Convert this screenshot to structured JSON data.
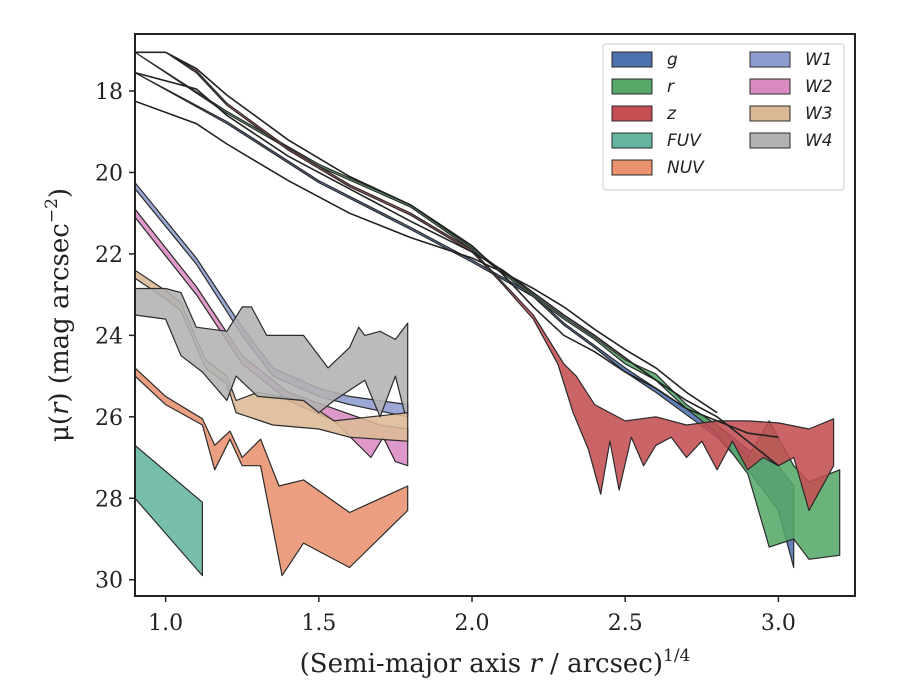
{
  "chart_data": {
    "type": "area",
    "xlabel_main": "(Semi-major axis ",
    "xlabel_var": "r",
    "xlabel_unit": " / arcsec)",
    "xlabel_exp": "1/4",
    "ylabel_main": "μ(",
    "ylabel_var": "r",
    "ylabel_unit": ") (mag arcsec",
    "ylabel_exp": "−2",
    "ylabel_close": ")",
    "xlim": [
      0.9,
      3.25
    ],
    "ylim": [
      30.4,
      16.6
    ],
    "y_inverted": true,
    "xticks": [
      1.0,
      1.5,
      2.0,
      2.5,
      3.0
    ],
    "xtick_labels": [
      "1.0",
      "1.5",
      "2.0",
      "2.5",
      "3.0"
    ],
    "yticks": [
      18,
      20,
      22,
      24,
      26,
      28,
      30
    ],
    "ytick_labels": [
      "18",
      "20",
      "22",
      "24",
      "26",
      "28",
      "30"
    ],
    "grid": false,
    "legend_position": "top-right",
    "legend_columns": 2,
    "series": [
      {
        "name": "g",
        "color": "#4c72b0",
        "upper": [
          [
            0.9,
            17.55
          ],
          [
            1.2,
            18.75
          ],
          [
            1.5,
            20.2
          ],
          [
            1.8,
            21.35
          ],
          [
            2.0,
            22.15
          ],
          [
            2.2,
            23.0
          ],
          [
            2.3,
            23.7
          ],
          [
            2.4,
            24.25
          ],
          [
            2.5,
            24.8
          ],
          [
            2.6,
            25.3
          ],
          [
            2.7,
            25.8
          ],
          [
            2.8,
            26.2
          ],
          [
            2.9,
            26.8
          ],
          [
            3.0,
            27.2
          ],
          [
            3.05,
            27.7
          ]
        ],
        "lower": [
          [
            0.9,
            17.55
          ],
          [
            1.2,
            18.8
          ],
          [
            1.5,
            20.25
          ],
          [
            1.8,
            21.4
          ],
          [
            2.0,
            22.2
          ],
          [
            2.2,
            23.05
          ],
          [
            2.3,
            23.75
          ],
          [
            2.4,
            24.3
          ],
          [
            2.5,
            24.9
          ],
          [
            2.6,
            25.4
          ],
          [
            2.7,
            25.95
          ],
          [
            2.8,
            26.5
          ],
          [
            2.9,
            27.3
          ],
          [
            3.0,
            28.3
          ],
          [
            3.05,
            29.7
          ]
        ]
      },
      {
        "name": "r",
        "color": "#55a868",
        "upper": [
          [
            0.9,
            17.05
          ],
          [
            1.2,
            18.5
          ],
          [
            1.5,
            19.8
          ],
          [
            1.8,
            20.8
          ],
          [
            2.0,
            21.85
          ],
          [
            2.2,
            23.0
          ],
          [
            2.3,
            23.55
          ],
          [
            2.4,
            24.05
          ],
          [
            2.5,
            24.6
          ],
          [
            2.6,
            24.95
          ],
          [
            2.7,
            25.7
          ],
          [
            2.8,
            26.2
          ],
          [
            2.9,
            27.0
          ],
          [
            2.97,
            26.1
          ],
          [
            3.05,
            27.2
          ],
          [
            3.1,
            27.6
          ],
          [
            3.2,
            27.3
          ]
        ],
        "lower": [
          [
            0.9,
            17.05
          ],
          [
            1.2,
            18.55
          ],
          [
            1.5,
            19.85
          ],
          [
            1.8,
            20.85
          ],
          [
            2.0,
            21.9
          ],
          [
            2.2,
            23.05
          ],
          [
            2.3,
            23.6
          ],
          [
            2.4,
            24.1
          ],
          [
            2.5,
            24.7
          ],
          [
            2.6,
            25.1
          ],
          [
            2.7,
            25.8
          ],
          [
            2.8,
            26.4
          ],
          [
            2.9,
            27.4
          ],
          [
            2.97,
            29.2
          ],
          [
            3.05,
            29.0
          ],
          [
            3.1,
            29.5
          ],
          [
            3.2,
            29.4
          ]
        ]
      },
      {
        "name": "z",
        "color": "#c44e52",
        "upper": [
          [
            0.9,
            17.05
          ],
          [
            1.0,
            17.05
          ],
          [
            1.1,
            17.5
          ],
          [
            1.2,
            18.3
          ],
          [
            1.4,
            19.4
          ],
          [
            1.6,
            20.3
          ],
          [
            1.8,
            21.0
          ],
          [
            2.0,
            21.9
          ],
          [
            2.1,
            22.7
          ],
          [
            2.2,
            23.5
          ],
          [
            2.3,
            24.7
          ],
          [
            2.34,
            25.0
          ],
          [
            2.4,
            25.7
          ],
          [
            2.5,
            26.1
          ],
          [
            2.6,
            26.0
          ],
          [
            2.7,
            26.2
          ],
          [
            2.8,
            26.1
          ],
          [
            2.9,
            26.1
          ],
          [
            3.0,
            26.15
          ],
          [
            3.1,
            26.3
          ],
          [
            3.18,
            26.05
          ]
        ],
        "lower": [
          [
            0.9,
            17.05
          ],
          [
            1.0,
            17.05
          ],
          [
            1.1,
            17.55
          ],
          [
            1.2,
            18.35
          ],
          [
            1.4,
            19.45
          ],
          [
            1.6,
            20.35
          ],
          [
            1.8,
            21.05
          ],
          [
            2.0,
            21.95
          ],
          [
            2.1,
            22.75
          ],
          [
            2.2,
            23.6
          ],
          [
            2.28,
            24.7
          ],
          [
            2.33,
            25.9
          ],
          [
            2.38,
            26.8
          ],
          [
            2.42,
            27.9
          ],
          [
            2.45,
            26.6
          ],
          [
            2.48,
            27.8
          ],
          [
            2.52,
            26.5
          ],
          [
            2.56,
            27.2
          ],
          [
            2.6,
            26.7
          ],
          [
            2.65,
            26.5
          ],
          [
            2.7,
            27.0
          ],
          [
            2.75,
            26.6
          ],
          [
            2.8,
            27.3
          ],
          [
            2.85,
            26.6
          ],
          [
            2.9,
            27.3
          ],
          [
            2.95,
            27.0
          ],
          [
            3.0,
            27.2
          ],
          [
            3.05,
            27.0
          ],
          [
            3.1,
            28.3
          ],
          [
            3.18,
            27.2
          ]
        ]
      },
      {
        "name": "FUV",
        "color": "#64b5a0",
        "upper": [
          [
            0.9,
            26.7
          ],
          [
            1.12,
            28.1
          ]
        ],
        "lower": [
          [
            0.9,
            28.0
          ],
          [
            1.12,
            29.9
          ]
        ]
      },
      {
        "name": "NUV",
        "color": "#e8926e",
        "upper": [
          [
            0.9,
            24.8
          ],
          [
            1.0,
            25.5
          ],
          [
            1.12,
            26.05
          ],
          [
            1.16,
            26.7
          ],
          [
            1.21,
            26.35
          ],
          [
            1.25,
            27.0
          ],
          [
            1.31,
            26.55
          ],
          [
            1.37,
            27.7
          ],
          [
            1.45,
            27.55
          ],
          [
            1.6,
            28.35
          ],
          [
            1.79,
            27.7
          ]
        ],
        "lower": [
          [
            0.9,
            25.0
          ],
          [
            1.0,
            25.7
          ],
          [
            1.12,
            26.2
          ],
          [
            1.16,
            27.3
          ],
          [
            1.21,
            26.55
          ],
          [
            1.25,
            27.2
          ],
          [
            1.31,
            27.2
          ],
          [
            1.38,
            29.9
          ],
          [
            1.45,
            29.1
          ],
          [
            1.6,
            29.7
          ],
          [
            1.79,
            28.3
          ]
        ]
      },
      {
        "name": "W1",
        "color": "#8d9ccf",
        "upper": [
          [
            0.9,
            20.25
          ],
          [
            1.1,
            22.1
          ],
          [
            1.25,
            23.8
          ],
          [
            1.35,
            24.8
          ],
          [
            1.5,
            25.3
          ],
          [
            1.6,
            25.5
          ],
          [
            1.79,
            25.7
          ]
        ],
        "lower": [
          [
            0.9,
            20.4
          ],
          [
            1.1,
            22.25
          ],
          [
            1.25,
            24.0
          ],
          [
            1.35,
            25.0
          ],
          [
            1.5,
            25.5
          ],
          [
            1.6,
            25.7
          ],
          [
            1.79,
            26.0
          ]
        ]
      },
      {
        "name": "W2",
        "color": "#da8bc3",
        "upper": [
          [
            0.9,
            20.9
          ],
          [
            1.1,
            22.8
          ],
          [
            1.25,
            24.5
          ],
          [
            1.4,
            25.4
          ],
          [
            1.55,
            25.8
          ],
          [
            1.7,
            26.2
          ],
          [
            1.79,
            26.3
          ]
        ],
        "lower": [
          [
            0.9,
            21.1
          ],
          [
            1.1,
            23.0
          ],
          [
            1.25,
            24.7
          ],
          [
            1.4,
            25.6
          ],
          [
            1.55,
            26.1
          ],
          [
            1.67,
            27.0
          ],
          [
            1.71,
            26.5
          ],
          [
            1.75,
            27.1
          ],
          [
            1.79,
            27.2
          ]
        ]
      },
      {
        "name": "W3",
        "color": "#dcb996",
        "upper": [
          [
            0.9,
            22.4
          ],
          [
            1.0,
            22.9
          ],
          [
            1.05,
            23.2
          ],
          [
            1.13,
            24.6
          ],
          [
            1.2,
            25.0
          ],
          [
            1.23,
            25.6
          ],
          [
            1.3,
            25.4
          ],
          [
            1.45,
            25.6
          ],
          [
            1.55,
            26.1
          ],
          [
            1.79,
            25.9
          ]
        ],
        "lower": [
          [
            0.9,
            22.6
          ],
          [
            1.0,
            23.1
          ],
          [
            1.05,
            23.4
          ],
          [
            1.13,
            24.8
          ],
          [
            1.2,
            25.2
          ],
          [
            1.23,
            25.9
          ],
          [
            1.35,
            26.2
          ],
          [
            1.5,
            26.3
          ],
          [
            1.6,
            26.5
          ],
          [
            1.79,
            26.6
          ]
        ]
      },
      {
        "name": "W4",
        "color": "#b2b2b2",
        "upper": [
          [
            0.9,
            22.85
          ],
          [
            1.0,
            22.85
          ],
          [
            1.05,
            22.95
          ],
          [
            1.1,
            23.8
          ],
          [
            1.2,
            23.9
          ],
          [
            1.25,
            23.3
          ],
          [
            1.28,
            23.3
          ],
          [
            1.33,
            24.0
          ],
          [
            1.45,
            24.0
          ],
          [
            1.53,
            24.8
          ],
          [
            1.6,
            24.3
          ],
          [
            1.63,
            23.8
          ],
          [
            1.65,
            24.0
          ],
          [
            1.7,
            23.9
          ],
          [
            1.75,
            24.1
          ],
          [
            1.79,
            23.7
          ]
        ],
        "lower": [
          [
            0.9,
            23.5
          ],
          [
            1.0,
            23.6
          ],
          [
            1.05,
            24.5
          ],
          [
            1.12,
            24.9
          ],
          [
            1.2,
            25.6
          ],
          [
            1.23,
            25.0
          ],
          [
            1.3,
            25.5
          ],
          [
            1.45,
            25.6
          ],
          [
            1.5,
            25.9
          ],
          [
            1.55,
            25.6
          ],
          [
            1.65,
            25.1
          ],
          [
            1.7,
            26.0
          ],
          [
            1.75,
            25.0
          ],
          [
            1.78,
            25.9
          ],
          [
            1.79,
            25.9
          ]
        ]
      }
    ],
    "model_lines": [
      {
        "points": [
          [
            0.9,
            17.05
          ],
          [
            1.0,
            17.05
          ],
          [
            1.1,
            17.45
          ],
          [
            1.2,
            18.1
          ],
          [
            1.4,
            19.2
          ],
          [
            1.6,
            20.1
          ],
          [
            1.8,
            20.8
          ],
          [
            2.0,
            21.8
          ],
          [
            2.1,
            22.5
          ],
          [
            2.2,
            23.3
          ],
          [
            2.3,
            24.0
          ],
          [
            2.4,
            24.4
          ],
          [
            2.5,
            24.9
          ],
          [
            2.6,
            25.3
          ],
          [
            2.7,
            25.8
          ],
          [
            2.8,
            26.1
          ],
          [
            2.9,
            26.4
          ],
          [
            3.0,
            26.5
          ]
        ]
      },
      {
        "points": [
          [
            0.9,
            17.55
          ],
          [
            1.1,
            17.95
          ],
          [
            1.2,
            18.6
          ],
          [
            1.4,
            19.6
          ],
          [
            1.6,
            20.4
          ],
          [
            1.8,
            21.2
          ],
          [
            2.0,
            21.95
          ],
          [
            2.1,
            22.4
          ],
          [
            2.2,
            22.95
          ],
          [
            2.3,
            23.5
          ],
          [
            2.4,
            24.0
          ],
          [
            2.5,
            24.55
          ],
          [
            2.6,
            25.1
          ],
          [
            2.7,
            25.6
          ],
          [
            2.8,
            26.0
          ],
          [
            2.9,
            26.6
          ],
          [
            3.0,
            27.2
          ]
        ]
      },
      {
        "points": [
          [
            0.9,
            18.25
          ],
          [
            1.1,
            18.8
          ],
          [
            1.2,
            19.3
          ],
          [
            1.4,
            20.2
          ],
          [
            1.6,
            21.0
          ],
          [
            1.8,
            21.6
          ],
          [
            2.0,
            22.1
          ],
          [
            2.1,
            22.45
          ],
          [
            2.2,
            22.85
          ],
          [
            2.3,
            23.3
          ],
          [
            2.4,
            23.85
          ],
          [
            2.5,
            24.35
          ],
          [
            2.6,
            24.8
          ],
          [
            2.7,
            25.4
          ],
          [
            2.8,
            25.9
          ]
        ]
      }
    ]
  }
}
